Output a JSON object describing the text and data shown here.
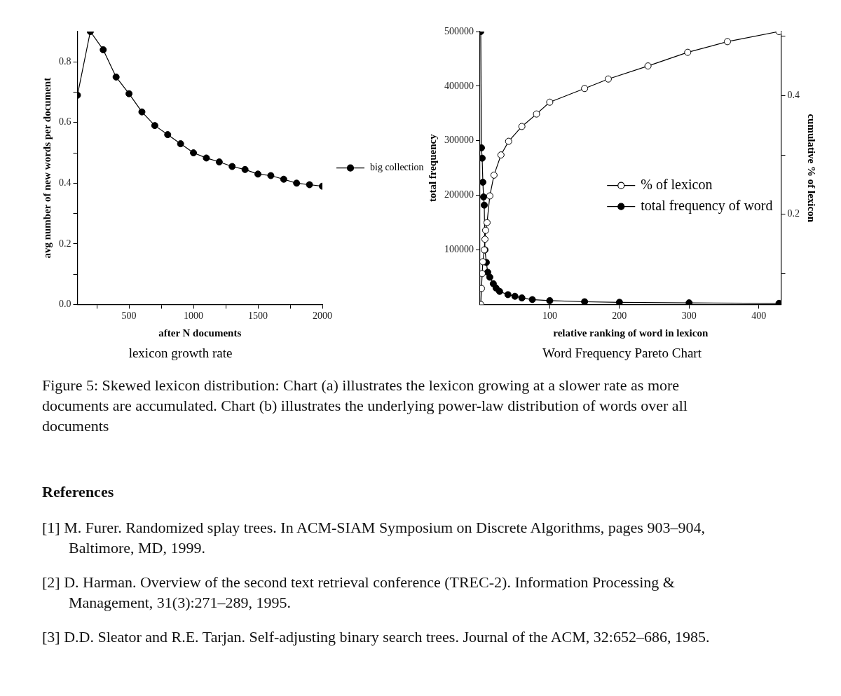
{
  "chart_data": [
    {
      "type": "line",
      "title": "lexicon growth rate",
      "xlabel": "after N documents",
      "ylabel": "avg number of new words per document",
      "x": [
        100,
        200,
        300,
        400,
        500,
        600,
        700,
        800,
        900,
        1000,
        1100,
        1200,
        1300,
        1400,
        1500,
        1600,
        1700,
        1800,
        1900,
        2000
      ],
      "series": [
        {
          "name": "big collection",
          "color": "#000000",
          "values": [
            0.69,
            0.9,
            0.84,
            0.75,
            0.695,
            0.635,
            0.59,
            0.56,
            0.53,
            0.5,
            0.483,
            0.47,
            0.455,
            0.445,
            0.43,
            0.425,
            0.413,
            0.4,
            0.395,
            0.39
          ]
        }
      ],
      "xlim": [
        100,
        2000
      ],
      "xticks": [
        {
          "value": 250,
          "label": null
        },
        500,
        {
          "value": 750,
          "label": null
        },
        1000,
        {
          "value": 1250,
          "label": null
        },
        1500,
        {
          "value": 1750,
          "label": null
        },
        2000
      ],
      "ylim": [
        0,
        0.9
      ],
      "yticks": [
        {
          "value": 0,
          "label": "0.0"
        },
        {
          "value": 0.1,
          "label": null
        },
        0.2,
        {
          "value": 0.3,
          "label": null
        },
        0.4,
        {
          "value": 0.5,
          "label": null
        },
        0.6,
        {
          "value": 0.7,
          "label": null
        },
        0.8
      ],
      "marker": "circle",
      "line_style": "solid",
      "grid": false,
      "legend": "right"
    },
    {
      "type": "line",
      "title": "Word Frequency Pareto Chart",
      "xlabel": "relative ranking of word in lexicon",
      "ylabel": "total frequency",
      "y2label": "cumulative % of lexicon",
      "series": [
        {
          "name": "% of lexicon",
          "color": "#ffffff",
          "axis": "y2",
          "x": [
            1,
            2,
            3,
            4,
            6,
            7,
            8,
            10,
            14,
            20,
            30,
            41,
            60,
            81,
            100,
            150,
            184,
            241,
            298,
            355,
            429
          ],
          "values": [
            0.048,
            0.075,
            0.1,
            0.12,
            0.14,
            0.158,
            0.173,
            0.186,
            0.231,
            0.266,
            0.3,
            0.323,
            0.348,
            0.369,
            0.389,
            0.412,
            0.428,
            0.45,
            0.473,
            0.491,
            0.508
          ]
        },
        {
          "name": "total frequency of word",
          "color": "#000000",
          "x": [
            1,
            2,
            3,
            4,
            5,
            6,
            7,
            9,
            11,
            14,
            19,
            23,
            28,
            40,
            50,
            60,
            75,
            100,
            150,
            200,
            300,
            429
          ],
          "values": [
            500000,
            287000,
            268000,
            224000,
            197000,
            182000,
            100000,
            77000,
            59000,
            50000,
            38000,
            30000,
            24000,
            18000,
            15000,
            12000,
            9000,
            7000,
            5000,
            4000,
            3000,
            2000
          ]
        }
      ],
      "xlim": [
        0,
        432
      ],
      "xticks": [
        100,
        200,
        300,
        400
      ],
      "ylim": [
        0,
        500000
      ],
      "yticks": [
        100000,
        200000,
        300000,
        400000,
        500000
      ],
      "y2lim": [
        0.048,
        0.508
      ],
      "y2ticks": [
        {
          "value": 0.1,
          "label": null
        },
        0.2,
        {
          "value": 0.3,
          "label": null
        },
        0.4,
        {
          "value": 0.5,
          "label": null
        }
      ],
      "marker": "circle",
      "line_style": "solid",
      "grid": false,
      "legend": "center right"
    },
    {
      "type": "other",
      "annotations": [
        "Figure 5: Skewed lexicon distribution: Chart (a) illustrates the lexicon growing at a slower rate as more documents are accumulated. Chart (b) illustrates the underlying power-law distribution of words over all documents",
        "References",
        "[1] M. Furer. Randomized splay trees. In ACM-SIAM Symposium on Discrete Algorithms, pages 903–904, Baltimore, MD, 1999.",
        "[2] D. Harman. Overview of the second text retrieval conference (TREC-2). Information Processing & Management, 31(3):271–289, 1995.",
        "[3] D.D. Sleator and R.E. Tarjan. Self-adjusting binary search trees. Journal of the ACM, 32:652–686, 1985."
      ]
    }
  ]
}
